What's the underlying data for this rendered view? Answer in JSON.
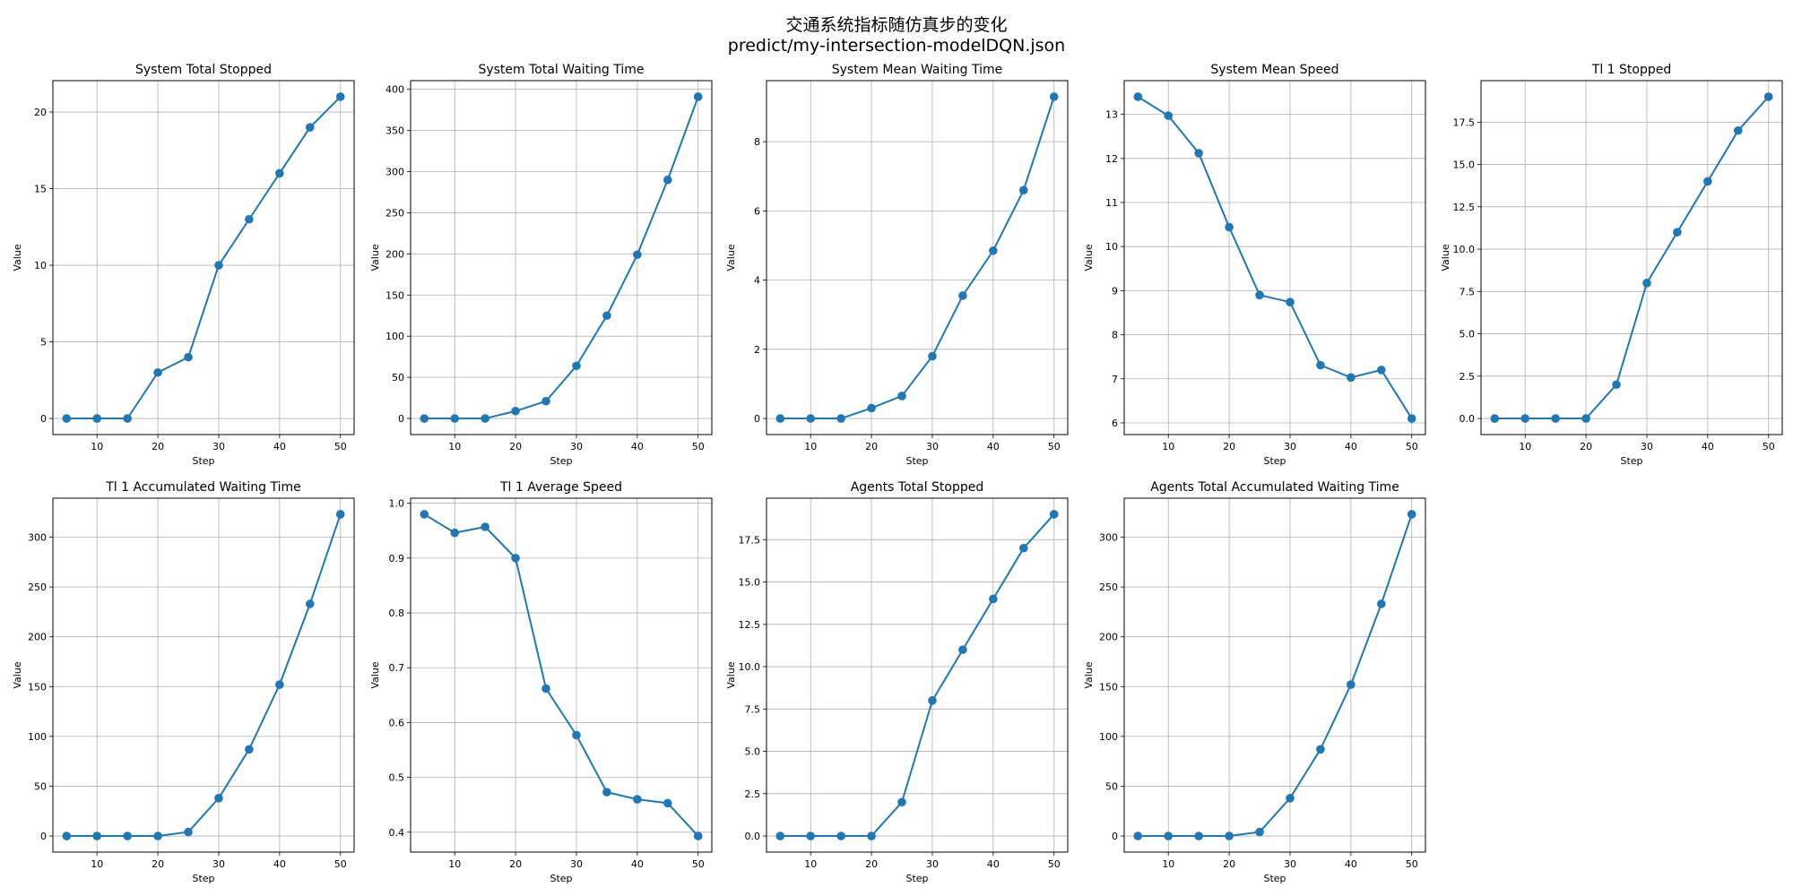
{
  "figure": {
    "title_line1": "交通系统指标随仿真步的变化",
    "title_line2": "predict/my-intersection-modelDQN.json",
    "series_color": "#1f77b4"
  },
  "chart_data": [
    {
      "type": "line",
      "title": "System Total Stopped",
      "xlabel": "Step",
      "ylabel": "Value",
      "x": [
        5,
        10,
        15,
        20,
        25,
        30,
        35,
        40,
        45,
        50
      ],
      "y": [
        0,
        0,
        0,
        3,
        4,
        10,
        13,
        16,
        19,
        21
      ],
      "xlim": [
        2.75,
        52.25
      ],
      "ylim": [
        -1.05,
        22.05
      ],
      "xticks": [
        10,
        20,
        30,
        40,
        50
      ],
      "yticks": [
        0,
        5,
        10,
        15,
        20
      ],
      "ytick_labels": [
        "0",
        "5",
        "10",
        "15",
        "20"
      ],
      "grid": true,
      "marker": "circle"
    },
    {
      "type": "line",
      "title": "System Total Waiting Time",
      "xlabel": "Step",
      "ylabel": "Value",
      "x": [
        5,
        10,
        15,
        20,
        25,
        30,
        35,
        40,
        45,
        50
      ],
      "y": [
        0,
        0,
        0,
        9,
        21,
        64,
        125,
        199,
        290,
        391
      ],
      "xlim": [
        2.75,
        52.25
      ],
      "ylim": [
        -19.55,
        410.55
      ],
      "xticks": [
        10,
        20,
        30,
        40,
        50
      ],
      "yticks": [
        0,
        50,
        100,
        150,
        200,
        250,
        300,
        350,
        400
      ],
      "ytick_labels": [
        "0",
        "50",
        "100",
        "150",
        "200",
        "250",
        "300",
        "350",
        "400"
      ],
      "grid": true,
      "marker": "circle"
    },
    {
      "type": "line",
      "title": "System Mean Waiting Time",
      "xlabel": "Step",
      "ylabel": "Value",
      "x": [
        5,
        10,
        15,
        20,
        25,
        30,
        35,
        40,
        45,
        50
      ],
      "y": [
        0,
        0,
        0,
        0.3,
        0.65,
        1.8,
        3.55,
        4.85,
        6.6,
        9.3
      ],
      "xlim": [
        2.75,
        52.25
      ],
      "ylim": [
        -0.465,
        9.765
      ],
      "xticks": [
        10,
        20,
        30,
        40,
        50
      ],
      "yticks": [
        0,
        2,
        4,
        6,
        8
      ],
      "ytick_labels": [
        "0",
        "2",
        "4",
        "6",
        "8"
      ],
      "grid": true,
      "marker": "circle"
    },
    {
      "type": "line",
      "title": "System Mean Speed",
      "xlabel": "Step",
      "ylabel": "Value",
      "x": [
        5,
        10,
        15,
        20,
        25,
        30,
        35,
        40,
        45,
        50
      ],
      "y": [
        13.4,
        12.97,
        12.12,
        10.44,
        8.9,
        8.74,
        7.31,
        7.03,
        7.2,
        6.1
      ],
      "xlim": [
        2.75,
        52.25
      ],
      "ylim": [
        5.735,
        13.765
      ],
      "xticks": [
        10,
        20,
        30,
        40,
        50
      ],
      "yticks": [
        6,
        7,
        8,
        9,
        10,
        11,
        12,
        13
      ],
      "ytick_labels": [
        "6",
        "7",
        "8",
        "9",
        "10",
        "11",
        "12",
        "13"
      ],
      "grid": true,
      "marker": "circle"
    },
    {
      "type": "line",
      "title": "Tl 1 Stopped",
      "xlabel": "Step",
      "ylabel": "Value",
      "x": [
        5,
        10,
        15,
        20,
        25,
        30,
        35,
        40,
        45,
        50
      ],
      "y": [
        0,
        0,
        0,
        0,
        2,
        8,
        11,
        14,
        17,
        19
      ],
      "xlim": [
        2.75,
        52.25
      ],
      "ylim": [
        -0.95,
        19.95
      ],
      "xticks": [
        10,
        20,
        30,
        40,
        50
      ],
      "yticks": [
        0,
        2.5,
        5,
        7.5,
        10,
        12.5,
        15,
        17.5
      ],
      "ytick_labels": [
        "0.0",
        "2.5",
        "5.0",
        "7.5",
        "10.0",
        "12.5",
        "15.0",
        "17.5"
      ],
      "grid": true,
      "marker": "circle"
    },
    {
      "type": "line",
      "title": "Tl 1 Accumulated Waiting Time",
      "xlabel": "Step",
      "ylabel": "Value",
      "x": [
        5,
        10,
        15,
        20,
        25,
        30,
        35,
        40,
        45,
        50
      ],
      "y": [
        0,
        0,
        0,
        0,
        4,
        38,
        87,
        152,
        233,
        323
      ],
      "xlim": [
        2.75,
        52.25
      ],
      "ylim": [
        -16.15,
        339.15
      ],
      "xticks": [
        10,
        20,
        30,
        40,
        50
      ],
      "yticks": [
        0,
        50,
        100,
        150,
        200,
        250,
        300
      ],
      "ytick_labels": [
        "0",
        "50",
        "100",
        "150",
        "200",
        "250",
        "300"
      ],
      "grid": true,
      "marker": "circle"
    },
    {
      "type": "line",
      "title": "Tl 1 Average Speed",
      "xlabel": "Step",
      "ylabel": "Value",
      "x": [
        5,
        10,
        15,
        20,
        25,
        30,
        35,
        40,
        45,
        50
      ],
      "y": [
        0.98,
        0.946,
        0.957,
        0.9,
        0.662,
        0.577,
        0.473,
        0.46,
        0.453,
        0.393
      ],
      "xlim": [
        2.75,
        52.25
      ],
      "ylim": [
        0.3637,
        1.0093
      ],
      "xticks": [
        10,
        20,
        30,
        40,
        50
      ],
      "yticks": [
        0.4,
        0.5,
        0.6,
        0.7,
        0.8,
        0.9,
        1.0
      ],
      "ytick_labels": [
        "0.4",
        "0.5",
        "0.6",
        "0.7",
        "0.8",
        "0.9",
        "1.0"
      ],
      "grid": true,
      "marker": "circle"
    },
    {
      "type": "line",
      "title": "Agents Total Stopped",
      "xlabel": "Step",
      "ylabel": "Value",
      "x": [
        5,
        10,
        15,
        20,
        25,
        30,
        35,
        40,
        45,
        50
      ],
      "y": [
        0,
        0,
        0,
        0,
        2,
        8,
        11,
        14,
        17,
        19
      ],
      "xlim": [
        2.75,
        52.25
      ],
      "ylim": [
        -0.95,
        19.95
      ],
      "xticks": [
        10,
        20,
        30,
        40,
        50
      ],
      "yticks": [
        0,
        2.5,
        5,
        7.5,
        10,
        12.5,
        15,
        17.5
      ],
      "ytick_labels": [
        "0.0",
        "2.5",
        "5.0",
        "7.5",
        "10.0",
        "12.5",
        "15.0",
        "17.5"
      ],
      "grid": true,
      "marker": "circle"
    },
    {
      "type": "line",
      "title": "Agents Total Accumulated Waiting Time",
      "xlabel": "Step",
      "ylabel": "Value",
      "x": [
        5,
        10,
        15,
        20,
        25,
        30,
        35,
        40,
        45,
        50
      ],
      "y": [
        0,
        0,
        0,
        0,
        4,
        38,
        87,
        152,
        233,
        323
      ],
      "xlim": [
        2.75,
        52.25
      ],
      "ylim": [
        -16.15,
        339.15
      ],
      "xticks": [
        10,
        20,
        30,
        40,
        50
      ],
      "yticks": [
        0,
        50,
        100,
        150,
        200,
        250,
        300
      ],
      "ytick_labels": [
        "0",
        "50",
        "100",
        "150",
        "200",
        "250",
        "300"
      ],
      "grid": true,
      "marker": "circle"
    }
  ]
}
